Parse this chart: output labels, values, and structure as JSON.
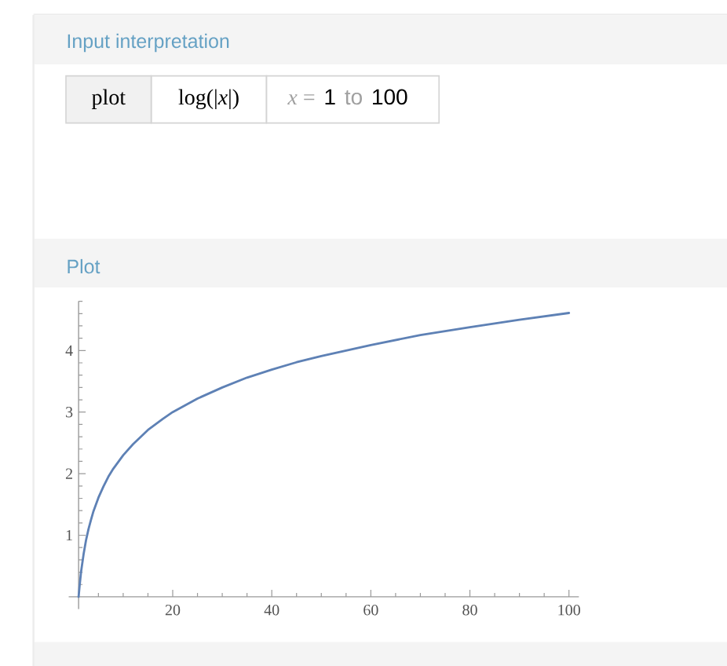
{
  "chart_data": {
    "type": "line",
    "title": "Plot",
    "annotations": [
      "Input interpretation",
      "plot",
      "log(|*x*|)",
      "*x* =",
      "1",
      "to",
      "100"
    ],
    "x": [
      1,
      1.2,
      1.5,
      2,
      2.5,
      3,
      3.5,
      4,
      5,
      6,
      7,
      8,
      10,
      12,
      15,
      18,
      20,
      25,
      30,
      35,
      40,
      45,
      50,
      60,
      70,
      80,
      90,
      100
    ],
    "series": [
      {
        "color": "#5e81b5",
        "values": [
          0,
          0.18,
          0.41,
          0.69,
          0.92,
          1.1,
          1.25,
          1.39,
          1.61,
          1.79,
          1.95,
          2.08,
          2.3,
          2.48,
          2.71,
          2.89,
          3.0,
          3.22,
          3.4,
          3.56,
          3.69,
          3.81,
          3.91,
          4.09,
          4.25,
          4.38,
          4.5,
          4.61
        ]
      }
    ],
    "xlim": [
      -1,
      102
    ],
    "ylim": [
      -0.2,
      4.8
    ],
    "xticks": [
      20,
      40,
      60,
      80,
      100
    ],
    "yticks": [
      1,
      2,
      3,
      4
    ],
    "marker": "none",
    "line_style": "solid"
  }
}
